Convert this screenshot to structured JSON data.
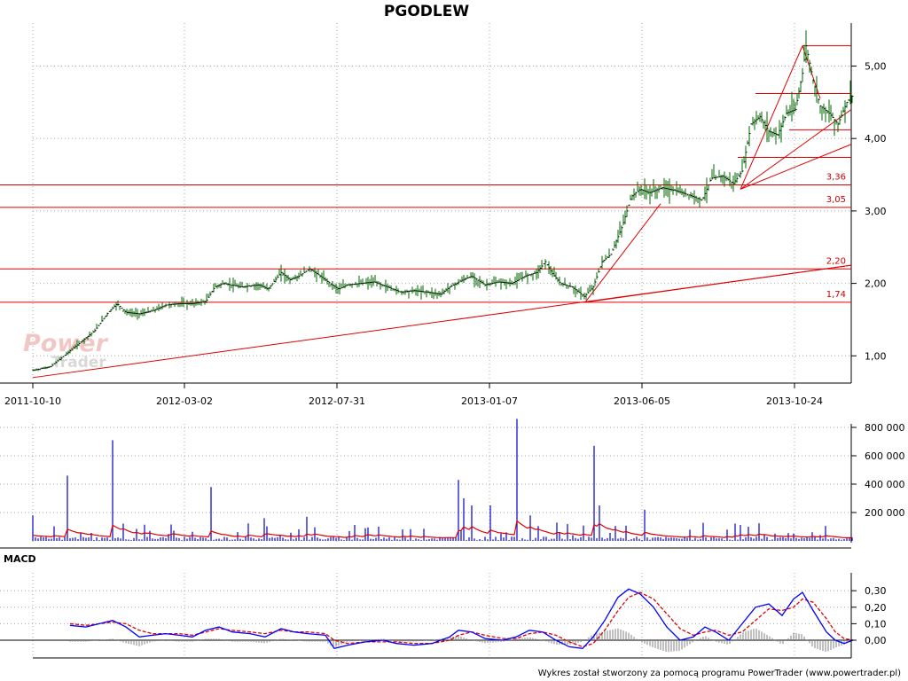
{
  "title": "PGODLEW",
  "watermark": {
    "line1": "Power",
    "line2": "Trader"
  },
  "footer": "Wykres został stworzony za pomocą programu PowerTrader (www.powertrader.pl)",
  "colors": {
    "price": "#006600",
    "support": "#e00000",
    "volume": "#0000cc",
    "volume_avg": "#e00000",
    "macd": "#0000ff",
    "signal": "#e00000",
    "hist": "#808080"
  },
  "chart_data": [
    {
      "type": "line",
      "name_panel": "price",
      "x_ticks": [
        "2011-10-10",
        "2012-03-02",
        "2012-07-31",
        "2013-01-07",
        "2013-06-05",
        "2013-10-24"
      ],
      "y_ticks": [
        "1,00",
        "2,00",
        "3,00",
        "4,00",
        "5,00"
      ],
      "ylim": [
        0.62,
        5.4
      ],
      "horizontal_levels": [
        {
          "value": 3.36,
          "label": "3,36"
        },
        {
          "value": 3.05,
          "label": "3,05"
        },
        {
          "value": 2.2,
          "label": "2,20"
        },
        {
          "value": 1.74,
          "label": "1,74"
        }
      ],
      "upper_levels": [
        4.62,
        4.12,
        3.74,
        5.28
      ],
      "price_path": [
        [
          0,
          0.8
        ],
        [
          20,
          0.85
        ],
        [
          40,
          1.05
        ],
        [
          55,
          1.2
        ],
        [
          70,
          1.35
        ],
        [
          85,
          1.6
        ],
        [
          95,
          1.72
        ],
        [
          105,
          1.6
        ],
        [
          120,
          1.58
        ],
        [
          135,
          1.62
        ],
        [
          150,
          1.7
        ],
        [
          165,
          1.72
        ],
        [
          180,
          1.72
        ],
        [
          195,
          1.75
        ],
        [
          205,
          1.95
        ],
        [
          215,
          2.0
        ],
        [
          235,
          1.95
        ],
        [
          255,
          1.98
        ],
        [
          265,
          1.92
        ],
        [
          280,
          2.15
        ],
        [
          290,
          2.05
        ],
        [
          300,
          2.1
        ],
        [
          312,
          2.2
        ],
        [
          322,
          2.12
        ],
        [
          335,
          2.0
        ],
        [
          345,
          1.92
        ],
        [
          355,
          1.98
        ],
        [
          370,
          2.0
        ],
        [
          385,
          2.02
        ],
        [
          400,
          1.95
        ],
        [
          415,
          1.88
        ],
        [
          430,
          1.9
        ],
        [
          445,
          1.88
        ],
        [
          460,
          1.85
        ],
        [
          470,
          1.95
        ],
        [
          485,
          2.05
        ],
        [
          495,
          2.1
        ],
        [
          510,
          1.98
        ],
        [
          525,
          2.02
        ],
        [
          540,
          2.0
        ],
        [
          555,
          2.1
        ],
        [
          568,
          2.15
        ],
        [
          578,
          2.3
        ],
        [
          585,
          2.15
        ],
        [
          595,
          2.0
        ],
        [
          608,
          1.95
        ],
        [
          622,
          1.82
        ],
        [
          632,
          1.95
        ],
        [
          642,
          2.3
        ],
        [
          652,
          2.4
        ],
        [
          665,
          2.8
        ],
        [
          675,
          3.2
        ],
        [
          685,
          3.3
        ],
        [
          695,
          3.25
        ],
        [
          710,
          3.32
        ],
        [
          725,
          3.28
        ],
        [
          740,
          3.22
        ],
        [
          755,
          3.15
        ],
        [
          765,
          3.45
        ],
        [
          778,
          3.48
        ],
        [
          790,
          3.38
        ],
        [
          800,
          3.55
        ],
        [
          810,
          4.2
        ],
        [
          820,
          4.3
        ],
        [
          830,
          4.1
        ],
        [
          840,
          4.05
        ],
        [
          850,
          4.35
        ],
        [
          860,
          4.4
        ],
        [
          868,
          4.9
        ],
        [
          872,
          5.28
        ],
        [
          880,
          4.8
        ],
        [
          888,
          4.45
        ],
        [
          898,
          4.35
        ],
        [
          908,
          4.2
        ],
        [
          918,
          4.5
        ],
        [
          925,
          4.6
        ]
      ]
    },
    {
      "type": "bar",
      "name_panel": "volume",
      "y_ticks": [
        "200 000",
        "400 000",
        "600 000",
        "800 000"
      ],
      "ylim": [
        0,
        900000
      ],
      "spikes": [
        {
          "i": 0,
          "v": 180000
        },
        {
          "i": 40,
          "v": 460000
        },
        {
          "i": 90,
          "v": 710000
        },
        {
          "i": 200,
          "v": 380000
        },
        {
          "i": 260,
          "v": 160000
        },
        {
          "i": 310,
          "v": 170000
        },
        {
          "i": 480,
          "v": 430000
        },
        {
          "i": 485,
          "v": 300000
        },
        {
          "i": 495,
          "v": 250000
        },
        {
          "i": 515,
          "v": 250000
        },
        {
          "i": 547,
          "v": 860000
        },
        {
          "i": 560,
          "v": 180000
        },
        {
          "i": 633,
          "v": 670000
        },
        {
          "i": 640,
          "v": 250000
        },
        {
          "i": 690,
          "v": 220000
        }
      ]
    },
    {
      "type": "line",
      "name_panel": "macd",
      "label": "MACD",
      "y_ticks": [
        "0,00",
        "0,10",
        "0,20",
        "0,30"
      ],
      "ylim": [
        -0.1,
        0.35
      ],
      "macd": [
        [
          42,
          0.09
        ],
        [
          60,
          0.08
        ],
        [
          75,
          0.1
        ],
        [
          90,
          0.12
        ],
        [
          105,
          0.08
        ],
        [
          120,
          0.02
        ],
        [
          135,
          0.03
        ],
        [
          150,
          0.04
        ],
        [
          165,
          0.03
        ],
        [
          180,
          0.02
        ],
        [
          195,
          0.06
        ],
        [
          210,
          0.08
        ],
        [
          225,
          0.05
        ],
        [
          245,
          0.04
        ],
        [
          262,
          0.02
        ],
        [
          280,
          0.07
        ],
        [
          295,
          0.05
        ],
        [
          310,
          0.04
        ],
        [
          330,
          0.03
        ],
        [
          340,
          -0.05
        ],
        [
          355,
          -0.03
        ],
        [
          375,
          -0.01
        ],
        [
          395,
          0.0
        ],
        [
          410,
          -0.02
        ],
        [
          430,
          -0.03
        ],
        [
          450,
          -0.02
        ],
        [
          470,
          0.02
        ],
        [
          480,
          0.06
        ],
        [
          495,
          0.05
        ],
        [
          510,
          0.01
        ],
        [
          530,
          0.0
        ],
        [
          545,
          0.02
        ],
        [
          560,
          0.06
        ],
        [
          575,
          0.05
        ],
        [
          590,
          0.0
        ],
        [
          605,
          -0.04
        ],
        [
          620,
          -0.05
        ],
        [
          632,
          0.02
        ],
        [
          645,
          0.12
        ],
        [
          660,
          0.26
        ],
        [
          672,
          0.31
        ],
        [
          685,
          0.28
        ],
        [
          700,
          0.2
        ],
        [
          715,
          0.08
        ],
        [
          730,
          0.0
        ],
        [
          745,
          0.02
        ],
        [
          758,
          0.08
        ],
        [
          770,
          0.05
        ],
        [
          785,
          0.0
        ],
        [
          800,
          0.1
        ],
        [
          815,
          0.2
        ],
        [
          830,
          0.22
        ],
        [
          845,
          0.15
        ],
        [
          858,
          0.25
        ],
        [
          868,
          0.29
        ],
        [
          880,
          0.18
        ],
        [
          895,
          0.05
        ],
        [
          905,
          0.0
        ],
        [
          915,
          -0.02
        ],
        [
          925,
          0.0
        ]
      ],
      "signal": [
        [
          42,
          0.1
        ],
        [
          60,
          0.09
        ],
        [
          75,
          0.1
        ],
        [
          90,
          0.11
        ],
        [
          105,
          0.1
        ],
        [
          120,
          0.06
        ],
        [
          135,
          0.04
        ],
        [
          150,
          0.04
        ],
        [
          165,
          0.04
        ],
        [
          180,
          0.03
        ],
        [
          195,
          0.05
        ],
        [
          210,
          0.07
        ],
        [
          225,
          0.06
        ],
        [
          245,
          0.05
        ],
        [
          262,
          0.04
        ],
        [
          280,
          0.06
        ],
        [
          295,
          0.05
        ],
        [
          310,
          0.05
        ],
        [
          330,
          0.04
        ],
        [
          340,
          0.0
        ],
        [
          355,
          -0.02
        ],
        [
          375,
          -0.01
        ],
        [
          395,
          -0.01
        ],
        [
          410,
          -0.01
        ],
        [
          430,
          -0.02
        ],
        [
          450,
          -0.02
        ],
        [
          470,
          0.0
        ],
        [
          480,
          0.03
        ],
        [
          495,
          0.05
        ],
        [
          510,
          0.03
        ],
        [
          530,
          0.01
        ],
        [
          545,
          0.01
        ],
        [
          560,
          0.04
        ],
        [
          575,
          0.05
        ],
        [
          590,
          0.03
        ],
        [
          605,
          -0.01
        ],
        [
          620,
          -0.04
        ],
        [
          632,
          -0.02
        ],
        [
          645,
          0.06
        ],
        [
          660,
          0.18
        ],
        [
          672,
          0.26
        ],
        [
          685,
          0.29
        ],
        [
          700,
          0.25
        ],
        [
          715,
          0.16
        ],
        [
          730,
          0.07
        ],
        [
          745,
          0.03
        ],
        [
          758,
          0.05
        ],
        [
          770,
          0.06
        ],
        [
          785,
          0.03
        ],
        [
          800,
          0.05
        ],
        [
          815,
          0.12
        ],
        [
          830,
          0.19
        ],
        [
          845,
          0.18
        ],
        [
          858,
          0.2
        ],
        [
          868,
          0.25
        ],
        [
          880,
          0.23
        ],
        [
          895,
          0.13
        ],
        [
          905,
          0.05
        ],
        [
          915,
          0.01
        ],
        [
          925,
          0.0
        ]
      ]
    }
  ]
}
